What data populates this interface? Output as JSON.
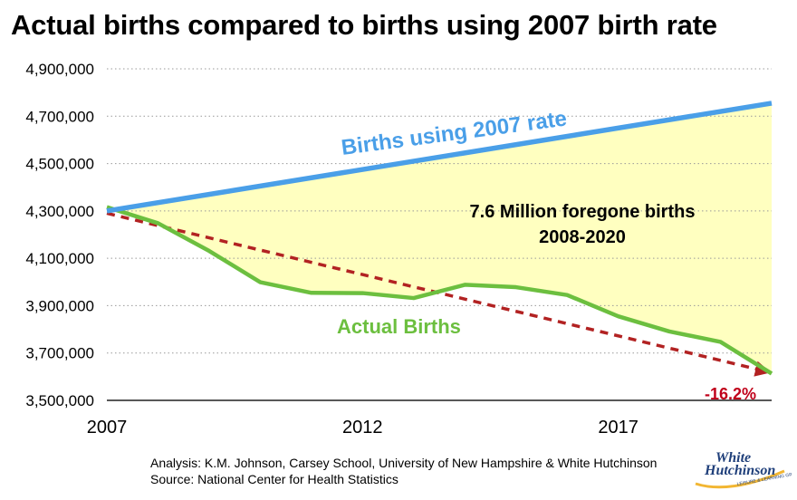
{
  "title": "Actual births compared to births using 2007 birth rate",
  "chart_data": {
    "type": "line",
    "title": "Actual births compared to births using 2007 birth rate",
    "xlabel": "",
    "ylabel": "",
    "xlim": [
      2007,
      2020
    ],
    "ylim": [
      3500000,
      4900000
    ],
    "y_tick_values": [
      3500000,
      3700000,
      3900000,
      4100000,
      4300000,
      4500000,
      4700000,
      4900000
    ],
    "y_tick_labels": [
      "3,500,000",
      "3,700,000",
      "3,900,000",
      "4,100,000",
      "4,300,000",
      "4,500,000",
      "4,700,000",
      "4,900,000"
    ],
    "x_tick_values": [
      2007,
      2012,
      2017
    ],
    "x_tick_labels": [
      "2007",
      "2012",
      "2017"
    ],
    "grid": "horizontal dotted",
    "series": [
      {
        "name": "Births using 2007 rate",
        "color": "#4a9fe8",
        "style": "solid",
        "x": [
          2007,
          2020
        ],
        "y": [
          4300000,
          4755000
        ]
      },
      {
        "name": "Actual Births",
        "color": "#6cbf3f",
        "style": "solid",
        "x": [
          2007,
          2008,
          2009,
          2010,
          2011,
          2012,
          2013,
          2014,
          2015,
          2016,
          2017,
          2018,
          2019,
          2020
        ],
        "y": [
          4316000,
          4248000,
          4131000,
          3999000,
          3954000,
          3953000,
          3932000,
          3988000,
          3978000,
          3945000,
          3855000,
          3791000,
          3747000,
          3613000
        ]
      },
      {
        "color": "#b22222",
        "style": "dashed",
        "x": [
          2007,
          2020
        ],
        "y": [
          4290000,
          3613000
        ]
      }
    ],
    "shaded_area": {
      "between": [
        "Births using 2007 rate",
        "Actual Births"
      ],
      "color": "#ffffc0"
    },
    "annotations": [
      {
        "text": "Births using 2007 rate",
        "color": "#4a9fe8"
      },
      {
        "text": "7.6 Million foregone births",
        "color": "#000000"
      },
      {
        "text": "2008-2020",
        "color": "#000000"
      },
      {
        "text": "Actual Births",
        "color": "#6cbf3f"
      },
      {
        "text": "-16.2%",
        "color": "#c0001a"
      }
    ]
  },
  "credits": {
    "line1": "Analysis: K.M. Johnson, Carsey School, University of New Hampshire & White Hutchinson",
    "line2": "Source: National Center for Health Statistics"
  },
  "logo": {
    "word1": "White",
    "word2": "Hutchinson",
    "tagline": "LEISURE & LEARNING GROUP"
  }
}
